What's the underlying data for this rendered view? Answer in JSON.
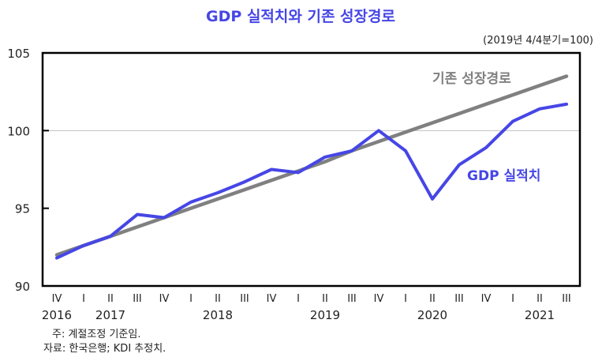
{
  "chart_data": {
    "type": "line",
    "title": "GDP 실적치와 기존 성장경로",
    "unit_note": "(2019년 4/4분기=100)",
    "ylim": [
      90,
      105
    ],
    "yticks": [
      "90",
      "95",
      "100",
      "105"
    ],
    "ytick_values": [
      90,
      95,
      100,
      105
    ],
    "reference_line": 100,
    "x_quarters": [
      "IV",
      "I",
      "II",
      "III",
      "IV",
      "I",
      "II",
      "III",
      "IV",
      "I",
      "II",
      "III",
      "IV",
      "I",
      "II",
      "III",
      "IV",
      "I",
      "II",
      "III"
    ],
    "x_years": [
      {
        "label": "2016",
        "index": 0
      },
      {
        "label": "2017",
        "index": 2
      },
      {
        "label": "2018",
        "index": 6
      },
      {
        "label": "2019",
        "index": 10
      },
      {
        "label": "2020",
        "index": 14
      },
      {
        "label": "2021",
        "index": 18
      }
    ],
    "series": [
      {
        "name": "기존 성장경로",
        "color": "#808080",
        "values": [
          92.0,
          92.6,
          93.2,
          93.8,
          94.4,
          95.0,
          95.6,
          96.2,
          96.8,
          97.4,
          98.0,
          98.7,
          99.3,
          99.9,
          100.5,
          101.1,
          101.7,
          102.3,
          102.9,
          103.5
        ]
      },
      {
        "name": "GDP 실적치",
        "color": "#4646e6",
        "values": [
          91.8,
          92.6,
          93.2,
          94.6,
          94.4,
          95.4,
          96.0,
          96.7,
          97.5,
          97.3,
          98.3,
          98.7,
          100.0,
          98.7,
          95.6,
          97.8,
          98.9,
          100.6,
          101.4,
          101.7
        ]
      }
    ],
    "notes": [
      "주: 계절조정 기준임.",
      "자료: 한국은행; KDI 추정치."
    ]
  }
}
